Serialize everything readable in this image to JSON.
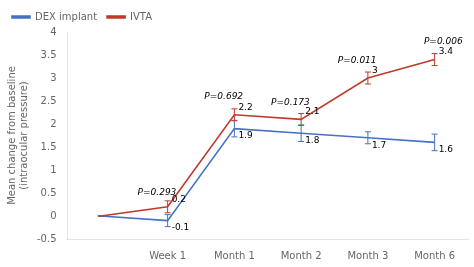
{
  "chart_data": {
    "type": "line",
    "categories": [
      null,
      "Week 1",
      "Month 1",
      "Month 2",
      "Month 3",
      "Month 6"
    ],
    "series": [
      {
        "name": "DEX implant",
        "color": "#4472C4",
        "values": [
          0.0,
          -0.1,
          1.9,
          1.8,
          1.7,
          1.6
        ],
        "errors": [
          0.0,
          0.13,
          0.18,
          0.18,
          0.13,
          0.18
        ],
        "value_labels": [
          null,
          "-0.1",
          "1.9",
          "1.8",
          "1.7",
          "1.6"
        ]
      },
      {
        "name": "IVTA",
        "color": "#C0392B",
        "values": [
          0.0,
          0.2,
          2.2,
          2.1,
          3.0,
          3.4
        ],
        "errors": [
          0.0,
          0.13,
          0.13,
          0.13,
          0.13,
          0.13
        ],
        "value_labels": [
          null,
          "0.2",
          "2.2",
          "2.1",
          "3",
          "3.4"
        ]
      }
    ],
    "ylabel": "Mean change from baseline\n(intraocular pressure)",
    "ylim": [
      -0.5,
      4.0
    ],
    "yticks": [
      -0.5,
      0.0,
      0.5,
      1.0,
      1.5,
      2.0,
      2.5,
      3.0,
      3.5,
      4.0
    ],
    "grid": false,
    "legend": "upper left",
    "data_labels": true,
    "annotations": [
      {
        "text": "P=0.293",
        "x": "Week 1",
        "y": 0.42
      },
      {
        "text": "P=0.692",
        "x": "Month 1",
        "y": 2.5
      },
      {
        "text": "P=0.173",
        "x": "Month 2",
        "y": 2.36
      },
      {
        "text": "P=0.011",
        "x": "Month 3",
        "y": 3.28
      },
      {
        "text": "P=0.006",
        "x": "Month 6",
        "y": 3.7
      }
    ]
  }
}
